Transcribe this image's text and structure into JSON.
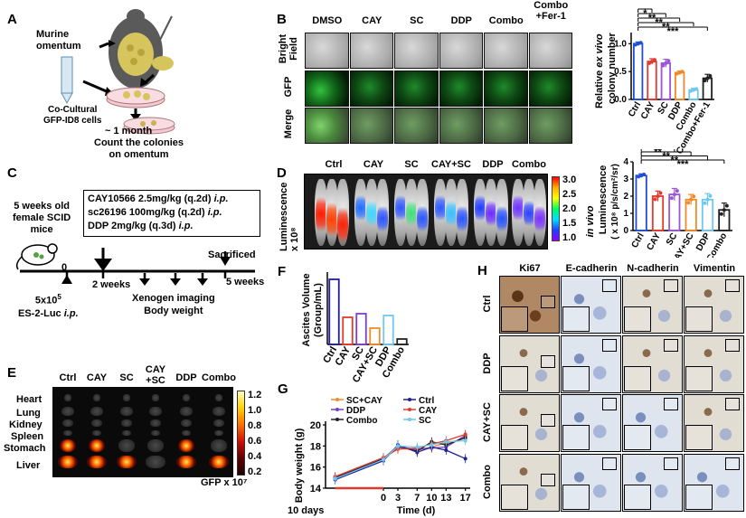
{
  "panels": {
    "A": {
      "label": "A",
      "omentum_label": "Murine\nomentum",
      "coculture_label": "Co-Cultural\nGFP-ID8 cells",
      "duration": "~ 1 month",
      "result_label": "Count the colonies\non omentum"
    },
    "B": {
      "label": "B",
      "columns": [
        "DMSO",
        "CAY",
        "SC",
        "DDP",
        "Combo",
        "Combo\n+Fer-1"
      ],
      "rows": [
        "Bright\nField",
        "GFP",
        "Merge"
      ]
    },
    "B_chart": {
      "chart_data": {
        "type": "bar",
        "title": "",
        "ylabel": "Relative ex vivo\ncolony number",
        "ylabel_parts": [
          "Relative ",
          "ex vivo",
          " colony number"
        ],
        "categories": [
          "Ctrl",
          "CAY",
          "SC",
          "DDP",
          "Combo",
          "Combo\n+Fer-1"
        ],
        "values": [
          1.0,
          0.68,
          0.65,
          0.48,
          0.17,
          0.38
        ],
        "errors": [
          0.03,
          0.05,
          0.07,
          0.03,
          0.03,
          0.07
        ],
        "colors": [
          "#1f4fd6",
          "#e23a2e",
          "#9b55d9",
          "#f08a28",
          "#6ec9f0",
          "#222222"
        ],
        "yticks": [
          "0.0",
          "0.5",
          "1.0"
        ],
        "ylim": [
          0,
          1.2
        ],
        "significance": [
          "*",
          "**",
          "**",
          "**",
          "***"
        ]
      }
    },
    "C": {
      "label": "C",
      "mouse_label": "5 weeks old\nfemale SCID\nmice",
      "treatments": [
        "CAY10566 2.5mg/kg (q.2d)",
        "sc26196 100mg/kg (q.2d)",
        "DDP 2mg/kg (q.3d)"
      ],
      "route": "i.p.",
      "timeline": [
        "0",
        "2 weeks",
        "5 weeks"
      ],
      "sacrificed": "Sacrificed",
      "imaging": "Xenogen imaging\nBody weight",
      "inoculation": "5x10⁵\nES-2-Luc i.p.",
      "inoculation_sup": "5",
      "inoculation_base": "5x10",
      "inoculation_line2": "ES-2-Luc "
    },
    "D": {
      "label": "D",
      "groups": [
        "Ctrl",
        "CAY",
        "SC",
        "CAY+SC",
        "DDP",
        "Combo"
      ],
      "ylabel": "Luminescence\nx 10⁸",
      "colorbar_ticks": [
        "3.0",
        "2.5",
        "2.0",
        "1.5",
        "1.0"
      ]
    },
    "D_chart": {
      "chart_data": {
        "type": "bar",
        "ylabel": "in vivo\nLuminescence\n( x 10⁸ p/s/cm²/sr)",
        "ylabel_top": "in vivo",
        "ylabel_mid": "Luminescence",
        "ylabel_bot": "( x 10⁸ p/s/cm²/sr)",
        "categories": [
          "Ctrl",
          "CAY",
          "SC",
          "CAY+SC",
          "DDP",
          "Combo"
        ],
        "values": [
          3.2,
          2.0,
          2.1,
          1.8,
          1.8,
          1.2
        ],
        "errors": [
          0.1,
          0.3,
          0.35,
          0.3,
          0.35,
          0.4
        ],
        "colors": [
          "#1f4fd6",
          "#e23a2e",
          "#9b55d9",
          "#f08a28",
          "#6ec9f0",
          "#222222"
        ],
        "yticks": [
          "0",
          "1",
          "2",
          "3",
          "4"
        ],
        "ylim": [
          0,
          4
        ],
        "significance": [
          "**",
          "**",
          "**",
          "**",
          "***"
        ]
      }
    },
    "E": {
      "label": "E",
      "groups": [
        "Ctrl",
        "CAY",
        "SC",
        "CAY\n+SC",
        "DDP",
        "Combo"
      ],
      "organs": [
        "Heart",
        "Lung",
        "Kidney",
        "Spleen",
        "Stomach",
        "Liver"
      ],
      "colorbar_ticks": [
        "1.2",
        "1.0",
        "0.8",
        "0.6",
        "0.4",
        "0.2"
      ],
      "colorbar_label": "GFP x 10⁷"
    },
    "F": {
      "label": "F",
      "chart_data": {
        "type": "bar",
        "ylabel": "Ascites Volume\n(Group/mL)",
        "categories": [
          "Ctrl",
          "CAY",
          "SC",
          "CAY+SC",
          "DDP",
          "Combo"
        ],
        "values": [
          3.6,
          1.5,
          1.7,
          0.9,
          1.6,
          0.3
        ],
        "colors": [
          "#1f1f9a",
          "#e23a2e",
          "#7b3fc7",
          "#f08a28",
          "#6ec9f0",
          "#222222"
        ],
        "ylim": [
          0,
          4
        ]
      }
    },
    "G": {
      "label": "G",
      "chart_data": {
        "type": "line",
        "xlabel": "Time (d)",
        "ylabel": "Body weight (g)",
        "x": [
          -10,
          0,
          3,
          7,
          10,
          13,
          17
        ],
        "xticks": [
          "0",
          "3",
          "7",
          "10",
          "13",
          "17"
        ],
        "yticks": [
          "14",
          "16",
          "18",
          "20"
        ],
        "ylim": [
          14,
          20
        ],
        "annotation": "10 days",
        "series": [
          {
            "name": "SC+CAY",
            "color": "#f08a28",
            "values": [
              15.0,
              16.8,
              17.8,
              17.6,
              17.9,
              18.3,
              18.7
            ]
          },
          {
            "name": "DDP",
            "color": "#7b3fc7",
            "values": [
              14.9,
              16.7,
              17.9,
              17.7,
              17.8,
              17.9,
              19.0
            ]
          },
          {
            "name": "Combo",
            "color": "#222222",
            "values": [
              15.0,
              16.8,
              18.0,
              17.5,
              18.4,
              18.1,
              18.8
            ]
          },
          {
            "name": "Ctrl",
            "color": "#1f1f9a",
            "values": [
              14.8,
              16.6,
              18.1,
              17.4,
              17.9,
              17.6,
              16.8
            ]
          },
          {
            "name": "CAY",
            "color": "#e23a2e",
            "values": [
              15.1,
              16.9,
              17.7,
              17.8,
              18.2,
              18.5,
              19.1
            ]
          },
          {
            "name": "SC",
            "color": "#6ec9f0",
            "values": [
              14.9,
              16.7,
              18.0,
              17.9,
              18.1,
              18.4,
              18.5
            ]
          }
        ]
      }
    },
    "H": {
      "label": "H",
      "columns": [
        "Ki67",
        "E-cadherin",
        "N-cadherin",
        "Vimentin"
      ],
      "rows": [
        "Ctrl",
        "DDP",
        "CAY+SC",
        "Combo"
      ]
    }
  }
}
